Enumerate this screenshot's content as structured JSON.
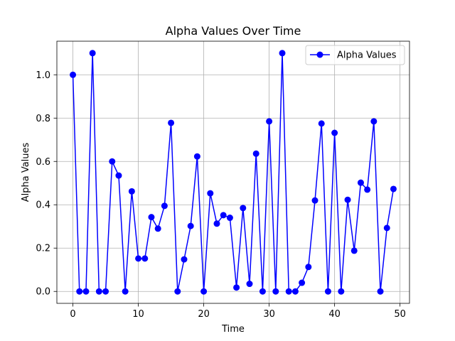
{
  "chart_data": {
    "type": "line",
    "title": "Alpha Values Over Time",
    "xlabel": "Time",
    "ylabel": "Alpha Values",
    "xlim": [
      -2.45,
      51.45
    ],
    "ylim": [
      -0.055,
      1.155
    ],
    "xticks": [
      0,
      10,
      20,
      30,
      40,
      50
    ],
    "xtick_labels": [
      "0",
      "10",
      "20",
      "30",
      "40",
      "50"
    ],
    "yticks": [
      0.0,
      0.2,
      0.4,
      0.6,
      0.8,
      1.0
    ],
    "ytick_labels": [
      "0.0",
      "0.2",
      "0.4",
      "0.6",
      "0.8",
      "1.0"
    ],
    "grid": true,
    "legend_position": "top-right",
    "series": [
      {
        "name": "Alpha Values",
        "color": "#0000ff",
        "marker": "circle",
        "x": [
          0,
          1,
          2,
          3,
          4,
          5,
          6,
          7,
          8,
          9,
          10,
          11,
          12,
          13,
          14,
          15,
          16,
          17,
          18,
          19,
          20,
          21,
          22,
          23,
          24,
          25,
          26,
          27,
          28,
          29,
          30,
          31,
          32,
          33,
          34,
          35,
          36,
          37,
          38,
          39,
          40,
          41,
          42,
          43,
          44,
          45,
          46,
          47,
          48,
          49
        ],
        "values": [
          1.0,
          0.0,
          0.0,
          1.1,
          0.0,
          0.0,
          0.6,
          0.535,
          0.0,
          0.462,
          0.152,
          0.152,
          0.343,
          0.29,
          0.395,
          0.778,
          0.0,
          0.148,
          0.302,
          0.623,
          0.0,
          0.453,
          0.313,
          0.352,
          0.34,
          0.018,
          0.385,
          0.035,
          0.636,
          0.0,
          0.785,
          0.0,
          1.1,
          0.0,
          0.0,
          0.04,
          0.113,
          0.42,
          0.775,
          0.0,
          0.732,
          0.0,
          0.423,
          0.188,
          0.502,
          0.47,
          0.785,
          0.0,
          0.293,
          0.473
        ]
      }
    ]
  }
}
